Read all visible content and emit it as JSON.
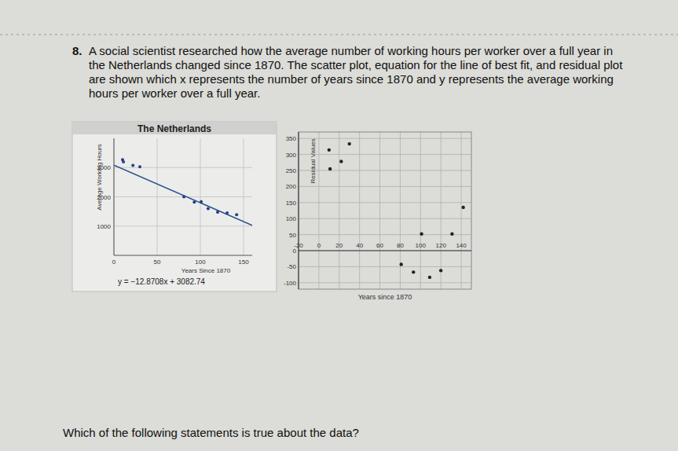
{
  "question": {
    "number": "8.",
    "lines": [
      "A social scientist researched how the average number of working hours per worker over a full year in",
      "the Netherlands changed since 1870. The scatter plot, equation for the line of best fit, and residual plot",
      "are shown which x represents the number of years since 1870 and y represents the average working",
      "hours per worker over a full year."
    ],
    "prompt": "Which of the following statements is true about the data?"
  },
  "chart_data": [
    {
      "type": "scatter",
      "title": "The Netherlands",
      "x_label": "Years Since 1870",
      "y_label": "Average Working Hours",
      "x": [
        10,
        11,
        22,
        30,
        81,
        93,
        101,
        109,
        120,
        131,
        142
      ],
      "values": [
        3268,
        3196,
        3077,
        3030,
        1997,
        1819,
        1835,
        1597,
        1476,
        1449,
        1390
      ],
      "xlim": [
        0,
        160
      ],
      "ylim": [
        0,
        4000
      ],
      "xticks": [
        0,
        50,
        100,
        150
      ],
      "yticks": [
        1000,
        2000,
        3000
      ],
      "grid": true,
      "color": "#1f3f8f",
      "fit": {
        "slope": -12.8708,
        "intercept": 3082.74,
        "label": "y = −12.8708x + 3082.74"
      }
    },
    {
      "type": "scatter",
      "x_label": "Years since 1870",
      "y_label": "Residual Values",
      "x": [
        10,
        11,
        22,
        30,
        81,
        93,
        101,
        109,
        120,
        131,
        142
      ],
      "values": [
        314,
        255,
        278,
        333,
        -43,
        -67,
        52,
        -83,
        -62,
        52,
        135
      ],
      "xlim": [
        -20,
        150
      ],
      "ylim": [
        -120,
        370
      ],
      "xticks": [
        -20,
        0,
        20,
        40,
        60,
        80,
        100,
        120,
        140
      ],
      "yticks": [
        -100,
        -50,
        0,
        50,
        100,
        150,
        200,
        250,
        300,
        350
      ],
      "grid": true,
      "color": "#222222"
    }
  ]
}
